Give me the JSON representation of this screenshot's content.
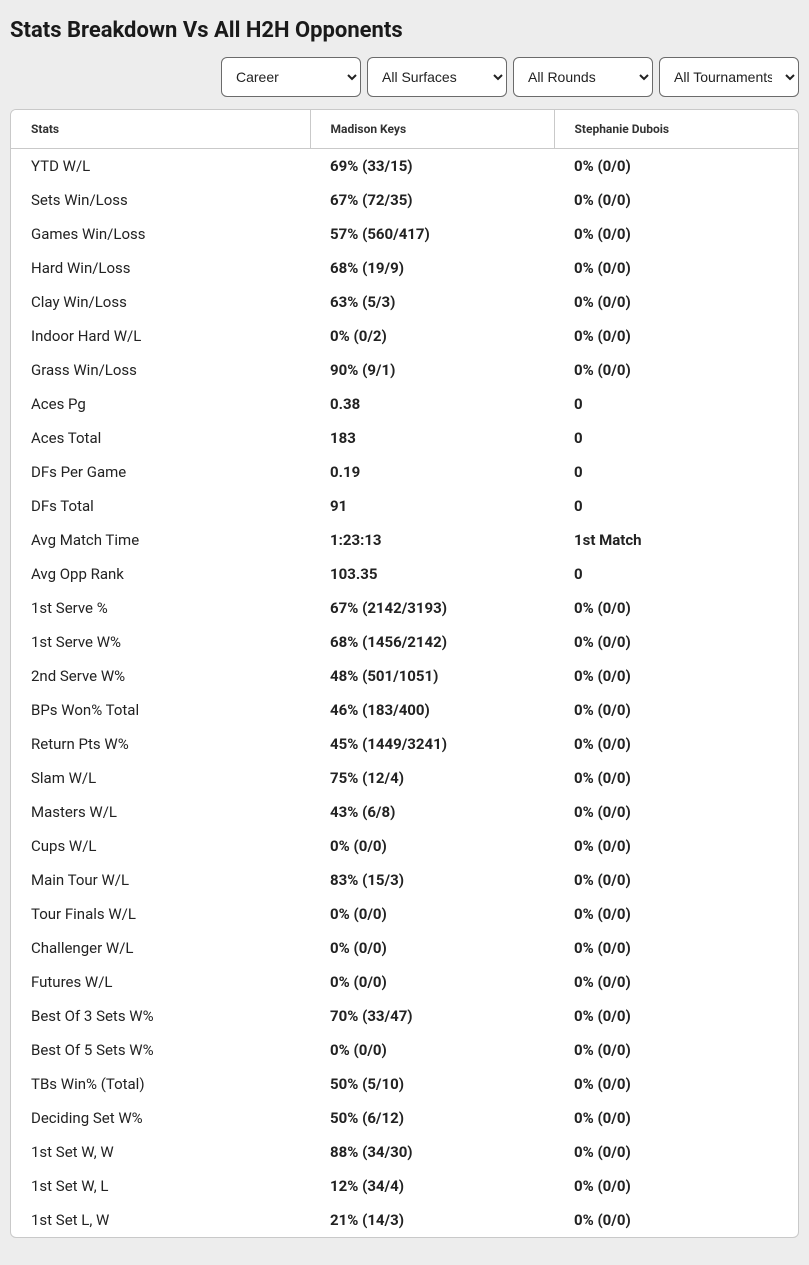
{
  "title": "Stats Breakdown Vs All H2H Opponents",
  "filters": {
    "period": "Career",
    "surface": "All Surfaces",
    "round": "All Rounds",
    "tournament": "All Tournaments"
  },
  "table": {
    "headers": {
      "stats": "Stats",
      "p1": "Madison Keys",
      "p2": "Stephanie Dubois"
    },
    "rows": [
      {
        "label": "YTD W/L",
        "p1": "69% (33/15)",
        "p2": "0% (0/0)"
      },
      {
        "label": "Sets Win/Loss",
        "p1": "67% (72/35)",
        "p2": "0% (0/0)"
      },
      {
        "label": "Games Win/Loss",
        "p1": "57% (560/417)",
        "p2": "0% (0/0)"
      },
      {
        "label": "Hard Win/Loss",
        "p1": "68% (19/9)",
        "p2": "0% (0/0)"
      },
      {
        "label": "Clay Win/Loss",
        "p1": "63% (5/3)",
        "p2": "0% (0/0)"
      },
      {
        "label": "Indoor Hard W/L",
        "p1": "0% (0/2)",
        "p2": "0% (0/0)"
      },
      {
        "label": "Grass Win/Loss",
        "p1": "90% (9/1)",
        "p2": "0% (0/0)"
      },
      {
        "label": "Aces Pg",
        "p1": "0.38",
        "p2": "0"
      },
      {
        "label": "Aces Total",
        "p1": "183",
        "p2": "0"
      },
      {
        "label": "DFs Per Game",
        "p1": "0.19",
        "p2": "0"
      },
      {
        "label": "DFs Total",
        "p1": "91",
        "p2": "0"
      },
      {
        "label": "Avg Match Time",
        "p1": "1:23:13",
        "p2": "1st Match"
      },
      {
        "label": "Avg Opp Rank",
        "p1": "103.35",
        "p2": "0"
      },
      {
        "label": "1st Serve %",
        "p1": "67% (2142/3193)",
        "p2": "0% (0/0)"
      },
      {
        "label": "1st Serve W%",
        "p1": "68% (1456/2142)",
        "p2": "0% (0/0)"
      },
      {
        "label": "2nd Serve W%",
        "p1": "48% (501/1051)",
        "p2": "0% (0/0)"
      },
      {
        "label": "BPs Won% Total",
        "p1": "46% (183/400)",
        "p2": "0% (0/0)"
      },
      {
        "label": "Return Pts W%",
        "p1": "45% (1449/3241)",
        "p2": "0% (0/0)"
      },
      {
        "label": "Slam W/L",
        "p1": "75% (12/4)",
        "p2": "0% (0/0)"
      },
      {
        "label": "Masters W/L",
        "p1": "43% (6/8)",
        "p2": "0% (0/0)"
      },
      {
        "label": "Cups W/L",
        "p1": "0% (0/0)",
        "p2": "0% (0/0)"
      },
      {
        "label": "Main Tour W/L",
        "p1": "83% (15/3)",
        "p2": "0% (0/0)"
      },
      {
        "label": "Tour Finals W/L",
        "p1": "0% (0/0)",
        "p2": "0% (0/0)"
      },
      {
        "label": "Challenger W/L",
        "p1": "0% (0/0)",
        "p2": "0% (0/0)"
      },
      {
        "label": "Futures W/L",
        "p1": "0% (0/0)",
        "p2": "0% (0/0)"
      },
      {
        "label": "Best Of 3 Sets W%",
        "p1": "70% (33/47)",
        "p2": "0% (0/0)"
      },
      {
        "label": "Best Of 5 Sets W%",
        "p1": "0% (0/0)",
        "p2": "0% (0/0)"
      },
      {
        "label": "TBs Win% (Total)",
        "p1": "50% (5/10)",
        "p2": "0% (0/0)"
      },
      {
        "label": "Deciding Set W%",
        "p1": "50% (6/12)",
        "p2": "0% (0/0)"
      },
      {
        "label": "1st Set W, W",
        "p1": "88% (34/30)",
        "p2": "0% (0/0)"
      },
      {
        "label": "1st Set W, L",
        "p1": "12% (34/4)",
        "p2": "0% (0/0)"
      },
      {
        "label": "1st Set L, W",
        "p1": "21% (14/3)",
        "p2": "0% (0/0)"
      }
    ]
  }
}
